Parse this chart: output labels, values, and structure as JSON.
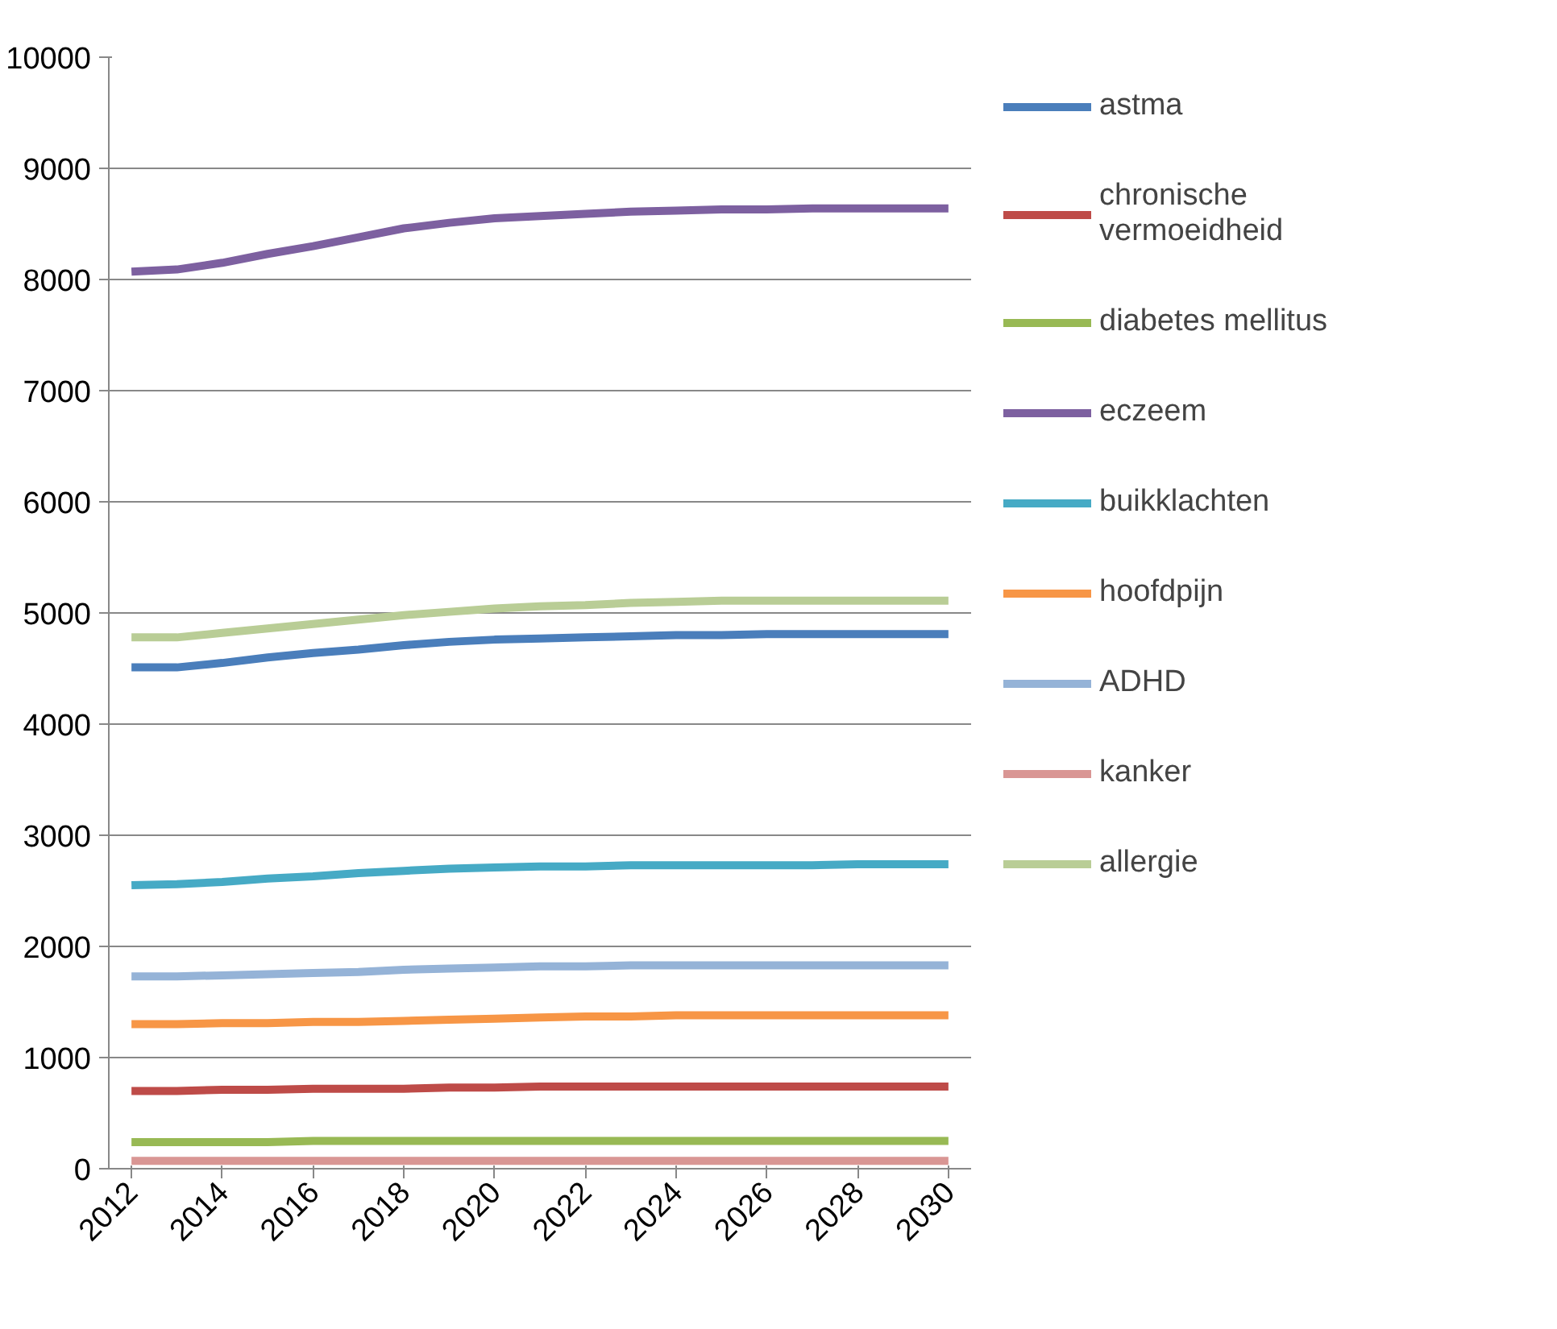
{
  "chart_data": {
    "type": "line",
    "x": [
      2012,
      2013,
      2014,
      2015,
      2016,
      2017,
      2018,
      2019,
      2020,
      2021,
      2022,
      2023,
      2024,
      2025,
      2026,
      2027,
      2028,
      2029,
      2030
    ],
    "xlim": [
      2011.5,
      2030.5
    ],
    "xticks": [
      2012,
      2014,
      2016,
      2018,
      2020,
      2022,
      2024,
      2026,
      2028,
      2030
    ],
    "ylim": [
      0,
      10000
    ],
    "yticks": [
      0,
      1000,
      2000,
      3000,
      4000,
      5000,
      6000,
      7000,
      8000,
      9000,
      10000
    ],
    "grid": "y",
    "legend": "right",
    "marker": "none",
    "line_style": "solid",
    "series": [
      {
        "name": "astma",
        "color": "#4a7ebb",
        "values": [
          4510,
          4510,
          4550,
          4600,
          4640,
          4670,
          4710,
          4740,
          4760,
          4770,
          4780,
          4790,
          4800,
          4800,
          4810,
          4810,
          4810,
          4810,
          4810
        ]
      },
      {
        "name": "chronische vermoeidheid",
        "color": "#be4b48",
        "values": [
          700,
          700,
          710,
          710,
          720,
          720,
          720,
          730,
          730,
          740,
          740,
          740,
          740,
          740,
          740,
          740,
          740,
          740,
          740
        ]
      },
      {
        "name": "diabetes mellitus",
        "color": "#98b954",
        "values": [
          240,
          240,
          240,
          240,
          250,
          250,
          250,
          250,
          250,
          250,
          250,
          250,
          250,
          250,
          250,
          250,
          250,
          250,
          250
        ]
      },
      {
        "name": "eczeem",
        "color": "#7d60a0",
        "values": [
          8070,
          8090,
          8150,
          8230,
          8300,
          8380,
          8460,
          8510,
          8550,
          8570,
          8590,
          8610,
          8620,
          8630,
          8630,
          8640,
          8640,
          8640,
          8640
        ]
      },
      {
        "name": "buikklachten",
        "color": "#46aac5",
        "values": [
          2550,
          2560,
          2580,
          2610,
          2630,
          2660,
          2680,
          2700,
          2710,
          2720,
          2720,
          2730,
          2730,
          2730,
          2730,
          2730,
          2740,
          2740,
          2740
        ]
      },
      {
        "name": "hoofdpijn",
        "color": "#f79646",
        "values": [
          1300,
          1300,
          1310,
          1310,
          1320,
          1320,
          1330,
          1340,
          1350,
          1360,
          1370,
          1370,
          1380,
          1380,
          1380,
          1380,
          1380,
          1380,
          1380
        ]
      },
      {
        "name": "ADHD",
        "color": "#95b3d7",
        "values": [
          1730,
          1730,
          1740,
          1750,
          1760,
          1770,
          1790,
          1800,
          1810,
          1820,
          1820,
          1830,
          1830,
          1830,
          1830,
          1830,
          1830,
          1830,
          1830
        ]
      },
      {
        "name": "kanker",
        "color": "#d99694",
        "values": [
          70,
          70,
          70,
          70,
          70,
          70,
          70,
          70,
          70,
          70,
          70,
          70,
          70,
          70,
          70,
          70,
          70,
          70,
          70
        ]
      },
      {
        "name": "allergie",
        "color": "#b9cd96",
        "values": [
          4780,
          4780,
          4820,
          4860,
          4900,
          4940,
          4980,
          5010,
          5040,
          5060,
          5070,
          5090,
          5100,
          5110,
          5110,
          5110,
          5110,
          5110,
          5110
        ]
      }
    ]
  }
}
